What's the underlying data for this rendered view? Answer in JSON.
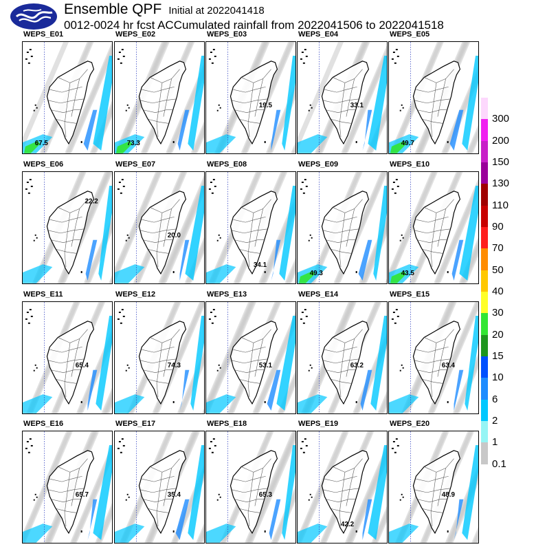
{
  "header": {
    "title": "Ensemble QPF",
    "initial": "Initial at 2022041418",
    "subtitle": "0012-0024 hr fcst ACCumulated rainfall from 2022041506 to 2022041518"
  },
  "members": [
    {
      "name": "WEPS_E01",
      "max": "67.5",
      "maxpos": "sw"
    },
    {
      "name": "WEPS_E02",
      "max": "73.3",
      "maxpos": "sw"
    },
    {
      "name": "WEPS_E03",
      "max": "19.5",
      "maxpos": "e"
    },
    {
      "name": "WEPS_E04",
      "max": "33.1",
      "maxpos": "e"
    },
    {
      "name": "WEPS_E05",
      "max": "49.7",
      "maxpos": "sw"
    },
    {
      "name": "WEPS_E06",
      "max": "22.2",
      "maxpos": "ne"
    },
    {
      "name": "WEPS_E07",
      "max": "20.0",
      "maxpos": "e"
    },
    {
      "name": "WEPS_E08",
      "max": "34.1",
      "maxpos": "se"
    },
    {
      "name": "WEPS_E09",
      "max": "49.3",
      "maxpos": "sw"
    },
    {
      "name": "WEPS_E10",
      "max": "43.5",
      "maxpos": "sw"
    },
    {
      "name": "WEPS_E11",
      "max": "65.4",
      "maxpos": "e"
    },
    {
      "name": "WEPS_E12",
      "max": "74.3",
      "maxpos": "e"
    },
    {
      "name": "WEPS_E13",
      "max": "53.1",
      "maxpos": "e"
    },
    {
      "name": "WEPS_E14",
      "max": "63.2",
      "maxpos": "e"
    },
    {
      "name": "WEPS_E15",
      "max": "63.4",
      "maxpos": "e"
    },
    {
      "name": "WEPS_E16",
      "max": "65.7",
      "maxpos": "e"
    },
    {
      "name": "WEPS_E17",
      "max": "35.4",
      "maxpos": "e"
    },
    {
      "name": "WEPS_E18",
      "max": "65.3",
      "maxpos": "e"
    },
    {
      "name": "WEPS_E19",
      "max": "42.2",
      "maxpos": "s"
    },
    {
      "name": "WEPS_E20",
      "max": "48.9",
      "maxpos": "e"
    }
  ],
  "legend": {
    "labels": [
      "300",
      "200",
      "150",
      "130",
      "110",
      "90",
      "70",
      "50",
      "40",
      "30",
      "20",
      "15",
      "10",
      "6",
      "2",
      "1",
      "0.1"
    ],
    "colors": [
      "#fdd8fd",
      "#f020f0",
      "#c820c8",
      "#9a009a",
      "#a00000",
      "#c80000",
      "#ff1e1e",
      "#ff8c00",
      "#ffc800",
      "#ffff28",
      "#32e632",
      "#1e961e",
      "#0050ff",
      "#1e8cff",
      "#00c8ff",
      "#96f5f5",
      "#c8c8c8",
      "#ffffff"
    ]
  },
  "colors": {
    "light_rain": "#c8c8c8",
    "cyan": "#00c8ff",
    "blue": "#1e8cff",
    "green": "#32e632"
  }
}
